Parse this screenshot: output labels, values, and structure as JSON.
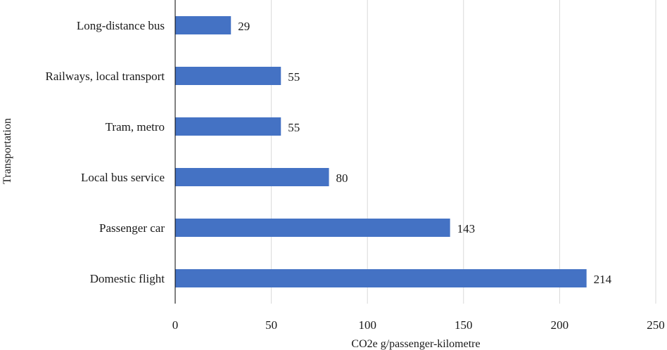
{
  "chart_data": {
    "type": "bar",
    "orientation": "horizontal",
    "categories": [
      "Long-distance bus",
      "Railways, local transport",
      "Tram, metro",
      "Local bus service",
      "Passenger car",
      "Domestic flight"
    ],
    "values": [
      29,
      55,
      55,
      80,
      143,
      214
    ],
    "data_labels": [
      "29",
      "55",
      "55",
      "80",
      "143",
      "214"
    ],
    "xlabel": "CO2e g/passenger-kilometre",
    "ylabel": "Transportation",
    "xlim": [
      0,
      250
    ],
    "xticks": [
      0,
      50,
      100,
      150,
      200,
      250
    ],
    "xtick_labels": [
      "0",
      "50",
      "100",
      "150",
      "200",
      "250"
    ],
    "grid": "vertical",
    "legend": "none",
    "bar_color": "#4472c4"
  }
}
